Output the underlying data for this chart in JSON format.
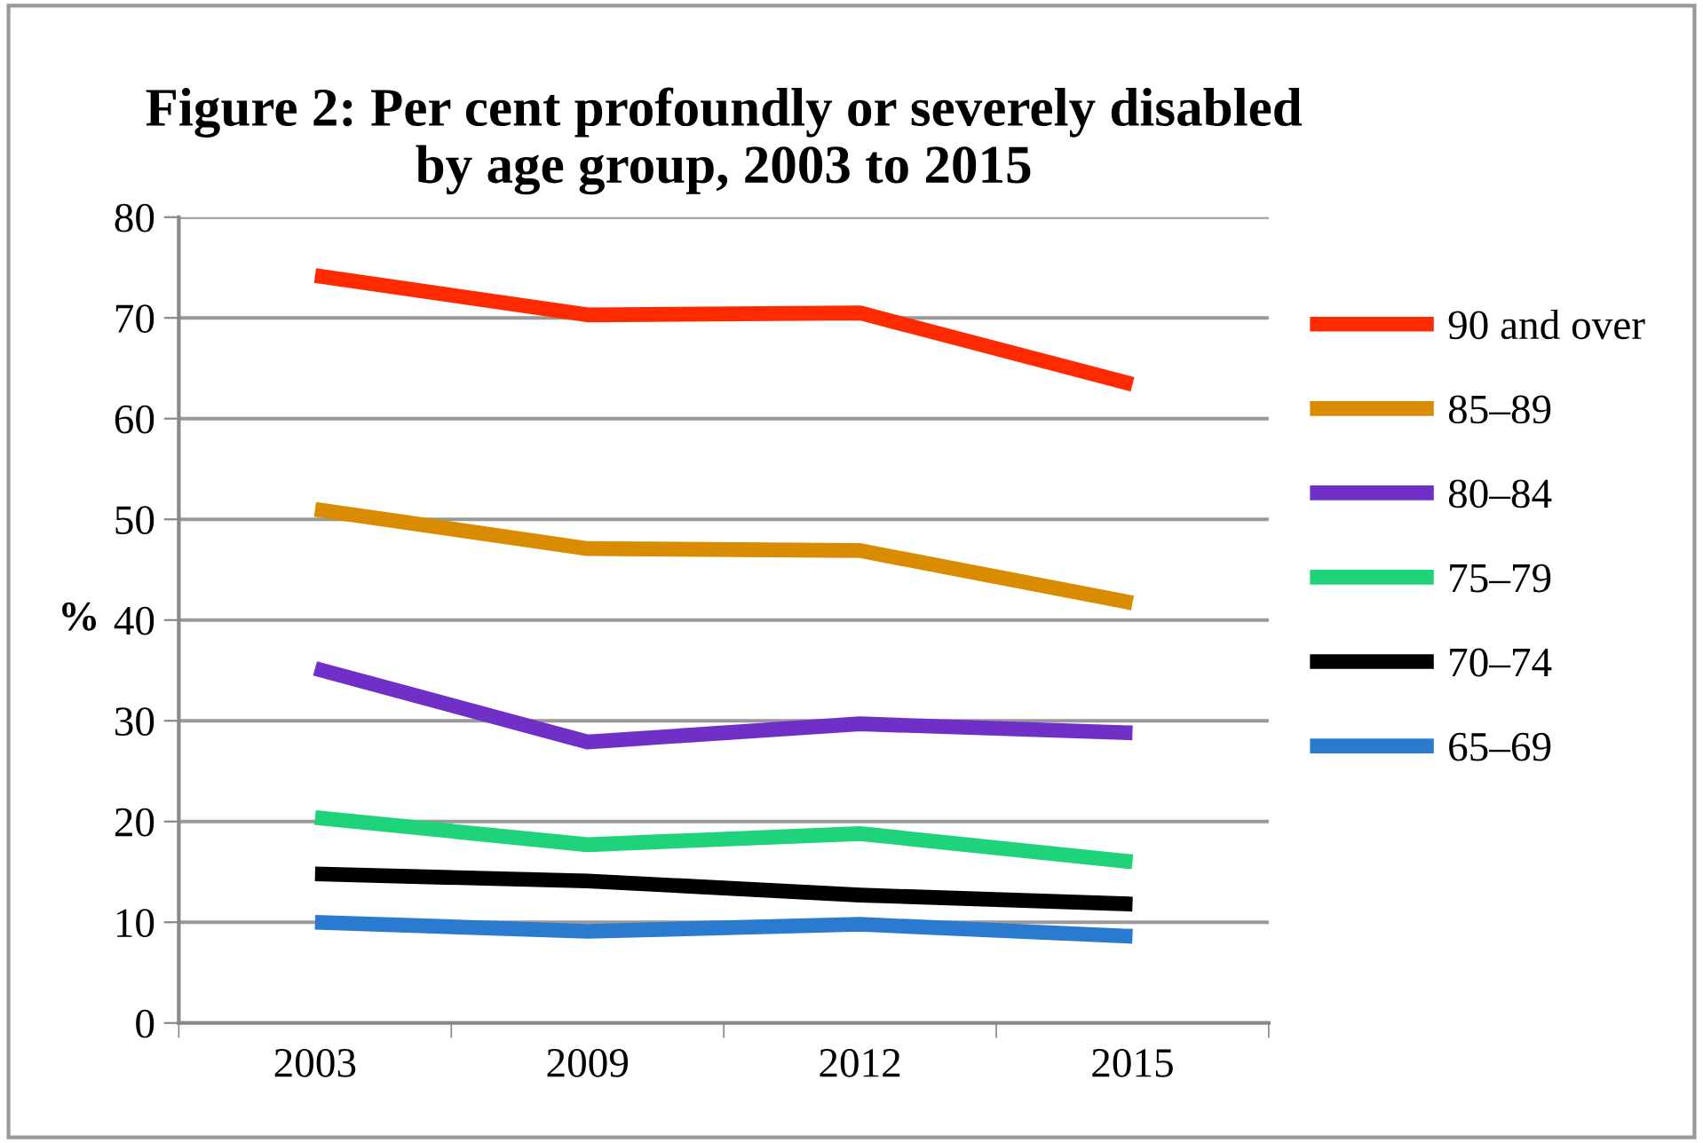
{
  "chart_data": {
    "type": "line",
    "title": "Figure 2: Per cent profoundly or severely disabled\nby age group, 2003 to 2015",
    "ylabel": "%",
    "categories": [
      "2003",
      "2009",
      "2012",
      "2015"
    ],
    "series": [
      {
        "name": "90 and over",
        "color": "#ff2a00",
        "values": [
          74.2,
          70.3,
          70.5,
          63.4
        ]
      },
      {
        "name": "85–89",
        "color": "#d98c00",
        "values": [
          51.0,
          47.1,
          46.9,
          41.7
        ]
      },
      {
        "name": "80–84",
        "color": "#7030c8",
        "values": [
          35.2,
          27.9,
          29.7,
          28.8
        ]
      },
      {
        "name": "75–79",
        "color": "#1ed37a",
        "values": [
          20.4,
          17.7,
          18.8,
          16.0
        ]
      },
      {
        "name": "70–74",
        "color": "#000000",
        "values": [
          14.8,
          14.1,
          12.7,
          11.8
        ]
      },
      {
        "name": "65–69",
        "color": "#2a7ad0",
        "values": [
          10.0,
          9.1,
          9.8,
          8.6
        ]
      }
    ],
    "ylim": [
      0,
      80
    ],
    "yticks": [
      0,
      10,
      20,
      30,
      40,
      50,
      60,
      70,
      80
    ],
    "grid": "y",
    "legend": "right",
    "marker": "none",
    "line_style": "solid"
  }
}
